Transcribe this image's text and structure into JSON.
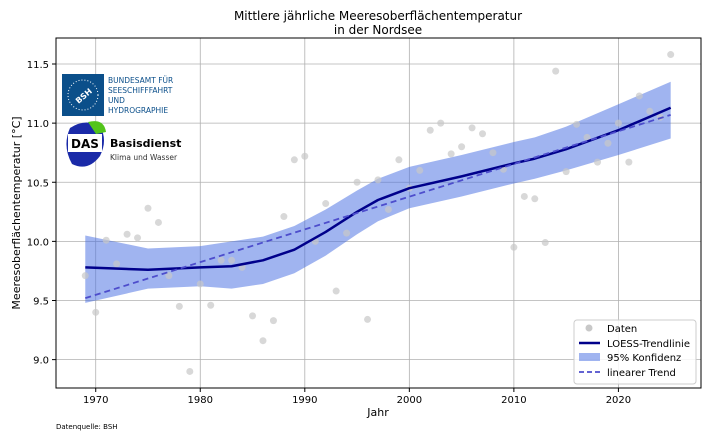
{
  "chart_data": {
    "type": "scatter",
    "title": "Mittlere jährliche Meeresoberflächentemperatur\nin der Nordsee",
    "xlabel": "Jahr",
    "ylabel": "Meeresoberflächentemperatur [°C]",
    "xlim": [
      1966.2,
      2027.9
    ],
    "ylim": [
      8.76,
      11.72
    ],
    "xticks": [
      1970,
      1980,
      1990,
      2000,
      2010,
      2020
    ],
    "yticks": [
      9.0,
      9.5,
      10.0,
      10.5,
      11.0,
      11.5
    ],
    "grid": true,
    "legend_position": "bottom-right",
    "source_note": "Datenquelle: BSH",
    "series": [
      {
        "name": "Daten",
        "kind": "scatter",
        "color": "#c8c8c8",
        "x": [
          1969,
          1970,
          1971,
          1972,
          1973,
          1974,
          1975,
          1976,
          1977,
          1978,
          1979,
          1980,
          1981,
          1982,
          1983,
          1984,
          1985,
          1986,
          1987,
          1988,
          1989,
          1990,
          1991,
          1992,
          1993,
          1994,
          1995,
          1996,
          1997,
          1998,
          1999,
          2000,
          2001,
          2002,
          2003,
          2004,
          2005,
          2006,
          2007,
          2008,
          2009,
          2010,
          2011,
          2012,
          2013,
          2014,
          2015,
          2016,
          2017,
          2018,
          2019,
          2020,
          2021,
          2022,
          2023,
          2024,
          2025
        ],
        "y": [
          9.71,
          9.4,
          10.01,
          9.81,
          10.06,
          10.03,
          10.28,
          10.16,
          9.71,
          9.45,
          8.9,
          9.64,
          9.46,
          9.84,
          9.84,
          9.78,
          9.37,
          9.16,
          9.33,
          10.21,
          10.69,
          10.72,
          10.0,
          10.32,
          9.58,
          10.07,
          10.5,
          9.34,
          10.52,
          10.27,
          10.69,
          10.45,
          10.6,
          10.94,
          11.0,
          10.74,
          10.8,
          10.96,
          10.91,
          10.75,
          10.61,
          9.95,
          10.38,
          10.36,
          9.99,
          11.44,
          10.59,
          10.99,
          10.88,
          10.67,
          10.83,
          11.0,
          10.67,
          11.23,
          11.1,
          11.05,
          11.58
        ]
      },
      {
        "name": "LOESS-Trendlinie",
        "kind": "line",
        "color": "#00008b",
        "x": [
          1969,
          1975,
          1980,
          1983,
          1986,
          1989,
          1992,
          1995,
          1997,
          2000,
          2005,
          2010,
          2012,
          2015,
          2020,
          2025
        ],
        "y": [
          9.78,
          9.76,
          9.78,
          9.79,
          9.84,
          9.93,
          10.08,
          10.25,
          10.35,
          10.45,
          10.55,
          10.66,
          10.7,
          10.78,
          10.94,
          11.13
        ]
      },
      {
        "name": "95% Konfidenz",
        "kind": "band",
        "color": "#4169e1",
        "x": [
          1969,
          1975,
          1980,
          1983,
          1986,
          1989,
          1992,
          1995,
          1997,
          2000,
          2005,
          2010,
          2012,
          2015,
          2020,
          2025
        ],
        "upper": [
          10.05,
          9.94,
          9.96,
          10.0,
          10.04,
          10.13,
          10.27,
          10.43,
          10.53,
          10.63,
          10.73,
          10.84,
          10.88,
          10.97,
          11.16,
          11.35
        ],
        "lower": [
          9.48,
          9.6,
          9.62,
          9.6,
          9.64,
          9.73,
          9.88,
          10.06,
          10.17,
          10.28,
          10.38,
          10.49,
          10.53,
          10.6,
          10.73,
          10.87
        ]
      },
      {
        "name": "linearer Trend",
        "kind": "dashed-line",
        "color": "#4d4dcc",
        "x": [
          1969,
          2025
        ],
        "y": [
          9.52,
          11.07
        ]
      }
    ]
  },
  "logos": {
    "bsh": {
      "mark": "BSH",
      "text": [
        "BUNDESAMT FÜR",
        "SEESCHIFFFAHRT",
        "UND",
        "HYDROGRAPHIE"
      ],
      "color": "#0b4f8a"
    },
    "das": {
      "mark": "DAS",
      "title": "Basisdienst",
      "subtitle": "Klima und Wasser"
    }
  }
}
